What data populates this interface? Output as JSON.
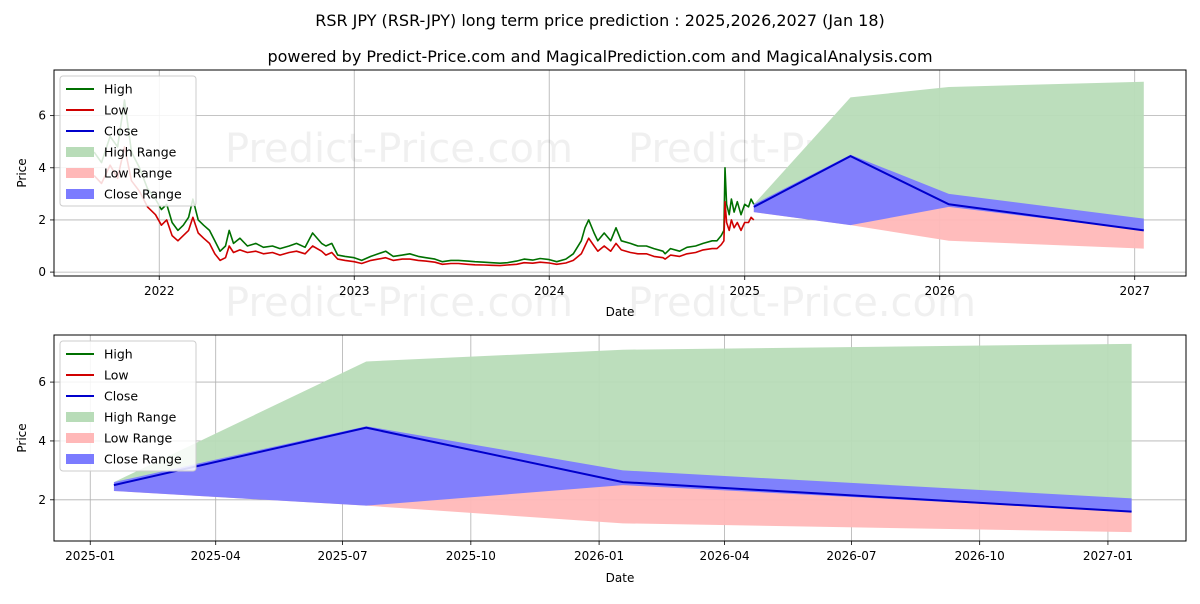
{
  "title": "RSR JPY (RSR-JPY) long term price prediction : 2025,2026,2027 (Jan 18)",
  "subtitle": "powered by Predict-Price.com and MagicalPrediction.com and MagicalAnalysis.com",
  "watermark": "Predict-Price.com",
  "colors": {
    "high": "#007000",
    "low": "#d00000",
    "close": "#0000cc",
    "high_range": "#b8dcb8",
    "low_range": "#ffb8b8",
    "close_range": "#7b7bff",
    "grid": "#b0b0b0"
  },
  "chart_data": [
    {
      "type": "line",
      "panel": "top",
      "xlabel": "Date",
      "ylabel": "Price",
      "x_ticks": [
        "2022",
        "2023",
        "2024",
        "2025",
        "2026",
        "2027"
      ],
      "y_ticks": [
        "0",
        "2",
        "4",
        "6"
      ],
      "xlim": [
        "2021-06-18",
        "2027-04-07"
      ],
      "ylim": [
        -0.15,
        7.75
      ],
      "legend": [
        "High",
        "Low",
        "High Range",
        "Low Range",
        "Close Range",
        "Close"
      ],
      "legend_labels": [
        "High",
        "Low",
        "Close",
        "High Range",
        "Low Range",
        "Close Range"
      ],
      "legend_position": "top-left",
      "history": {
        "dates": [
          "2021-09-01",
          "2021-09-15",
          "2021-10-01",
          "2021-10-15",
          "2021-10-28",
          "2021-11-10",
          "2021-11-25",
          "2021-12-10",
          "2021-12-25",
          "2022-01-05",
          "2022-01-15",
          "2022-01-25",
          "2022-02-05",
          "2022-02-15",
          "2022-02-25",
          "2022-03-05",
          "2022-03-15",
          "2022-03-25",
          "2022-04-05",
          "2022-04-15",
          "2022-04-25",
          "2022-05-05",
          "2022-05-12",
          "2022-05-20",
          "2022-06-01",
          "2022-06-15",
          "2022-07-01",
          "2022-07-15",
          "2022-08-01",
          "2022-08-15",
          "2022-09-01",
          "2022-09-15",
          "2022-10-01",
          "2022-10-15",
          "2022-11-01",
          "2022-11-09",
          "2022-11-20",
          "2022-12-01",
          "2022-12-15",
          "2023-01-01",
          "2023-01-15",
          "2023-02-01",
          "2023-02-15",
          "2023-03-01",
          "2023-03-15",
          "2023-04-01",
          "2023-04-15",
          "2023-05-01",
          "2023-05-15",
          "2023-06-01",
          "2023-06-15",
          "2023-07-01",
          "2023-07-15",
          "2023-08-01",
          "2023-08-15",
          "2023-09-01",
          "2023-09-15",
          "2023-10-01",
          "2023-10-15",
          "2023-11-01",
          "2023-11-15",
          "2023-12-01",
          "2023-12-15",
          "2024-01-01",
          "2024-01-15",
          "2024-02-01",
          "2024-02-15",
          "2024-03-01",
          "2024-03-08",
          "2024-03-15",
          "2024-03-25",
          "2024-04-01",
          "2024-04-13",
          "2024-04-25",
          "2024-05-05",
          "2024-05-15",
          "2024-06-01",
          "2024-06-15",
          "2024-07-01",
          "2024-07-15",
          "2024-08-01",
          "2024-08-05",
          "2024-08-15",
          "2024-09-01",
          "2024-09-15",
          "2024-10-01",
          "2024-10-15",
          "2024-11-01",
          "2024-11-10",
          "2024-11-18",
          "2024-11-23",
          "2024-11-25",
          "2024-11-28",
          "2024-12-03",
          "2024-12-07",
          "2024-12-12",
          "2024-12-18",
          "2024-12-25",
          "2025-01-01",
          "2025-01-08",
          "2025-01-13",
          "2025-01-18"
        ],
        "high": [
          4.6,
          4.2,
          5.2,
          4.8,
          6.6,
          4.6,
          4.0,
          3.2,
          2.8,
          2.4,
          2.6,
          1.9,
          1.6,
          1.8,
          2.1,
          2.8,
          2.0,
          1.8,
          1.6,
          1.2,
          0.8,
          1.0,
          1.6,
          1.1,
          1.3,
          1.0,
          1.1,
          0.95,
          1.0,
          0.9,
          1.0,
          1.1,
          0.95,
          1.5,
          1.1,
          1.0,
          1.1,
          0.65,
          0.6,
          0.55,
          0.45,
          0.6,
          0.7,
          0.8,
          0.6,
          0.65,
          0.7,
          0.6,
          0.55,
          0.5,
          0.4,
          0.45,
          0.45,
          0.42,
          0.4,
          0.38,
          0.36,
          0.34,
          0.36,
          0.42,
          0.5,
          0.46,
          0.52,
          0.48,
          0.4,
          0.5,
          0.7,
          1.2,
          1.7,
          2.0,
          1.5,
          1.2,
          1.5,
          1.2,
          1.7,
          1.2,
          1.1,
          1.0,
          1.0,
          0.9,
          0.8,
          0.7,
          0.9,
          0.8,
          0.95,
          1.0,
          1.1,
          1.2,
          1.2,
          1.4,
          1.6,
          4.0,
          2.6,
          2.2,
          2.8,
          2.3,
          2.7,
          2.2,
          2.6,
          2.5,
          2.8,
          2.6
        ],
        "low": [
          3.7,
          3.4,
          4.1,
          3.6,
          4.8,
          3.5,
          3.1,
          2.5,
          2.2,
          1.8,
          2.0,
          1.4,
          1.2,
          1.4,
          1.6,
          2.1,
          1.5,
          1.3,
          1.1,
          0.7,
          0.45,
          0.55,
          1.0,
          0.75,
          0.85,
          0.75,
          0.8,
          0.7,
          0.75,
          0.65,
          0.75,
          0.8,
          0.7,
          1.0,
          0.8,
          0.65,
          0.75,
          0.5,
          0.45,
          0.4,
          0.33,
          0.45,
          0.5,
          0.55,
          0.45,
          0.5,
          0.5,
          0.45,
          0.42,
          0.38,
          0.3,
          0.33,
          0.33,
          0.3,
          0.28,
          0.27,
          0.26,
          0.25,
          0.27,
          0.3,
          0.36,
          0.34,
          0.38,
          0.35,
          0.3,
          0.35,
          0.45,
          0.7,
          1.0,
          1.3,
          1.0,
          0.8,
          1.0,
          0.8,
          1.1,
          0.85,
          0.75,
          0.7,
          0.7,
          0.6,
          0.55,
          0.5,
          0.65,
          0.6,
          0.7,
          0.75,
          0.85,
          0.9,
          0.9,
          1.05,
          1.2,
          2.7,
          1.9,
          1.6,
          2.0,
          1.7,
          1.9,
          1.6,
          1.9,
          1.9,
          2.1,
          2.0
        ]
      },
      "forecast": {
        "dates": [
          "2025-01-18",
          "2025-07-18",
          "2026-01-18",
          "2027-01-18"
        ],
        "high_upper": [
          2.6,
          6.7,
          7.1,
          7.3
        ],
        "low_lower": [
          2.3,
          1.8,
          1.2,
          0.9
        ],
        "close_upper": [
          2.6,
          4.5,
          3.0,
          2.05
        ],
        "close_lower": [
          2.3,
          1.8,
          2.5,
          1.6
        ],
        "close": [
          2.5,
          4.45,
          2.6,
          1.6
        ]
      }
    },
    {
      "type": "area",
      "panel": "bottom",
      "xlabel": "Date",
      "ylabel": "Price",
      "x_ticks": [
        "2025-01",
        "2025-04",
        "2025-07",
        "2025-10",
        "2026-01",
        "2026-04",
        "2026-07",
        "2026-10",
        "2027-01"
      ],
      "y_ticks": [
        "2",
        "4",
        "6"
      ],
      "xlim": [
        "2024-12-06",
        "2027-02-26"
      ],
      "ylim": [
        0.6,
        7.6
      ],
      "legend": [
        "High",
        "Low",
        "Close",
        "High Range",
        "Low Range",
        "Close Range"
      ],
      "legend_position": "top-left",
      "forecast": {
        "dates": [
          "2025-01-18",
          "2025-07-18",
          "2026-01-18",
          "2027-01-18"
        ],
        "high_upper": [
          2.6,
          6.7,
          7.1,
          7.3
        ],
        "low_lower": [
          2.3,
          1.8,
          1.2,
          0.9
        ],
        "close_upper": [
          2.6,
          4.5,
          3.0,
          2.05
        ],
        "close_lower": [
          2.3,
          1.8,
          2.5,
          1.6
        ],
        "close": [
          2.5,
          4.45,
          2.6,
          1.6
        ]
      }
    }
  ]
}
